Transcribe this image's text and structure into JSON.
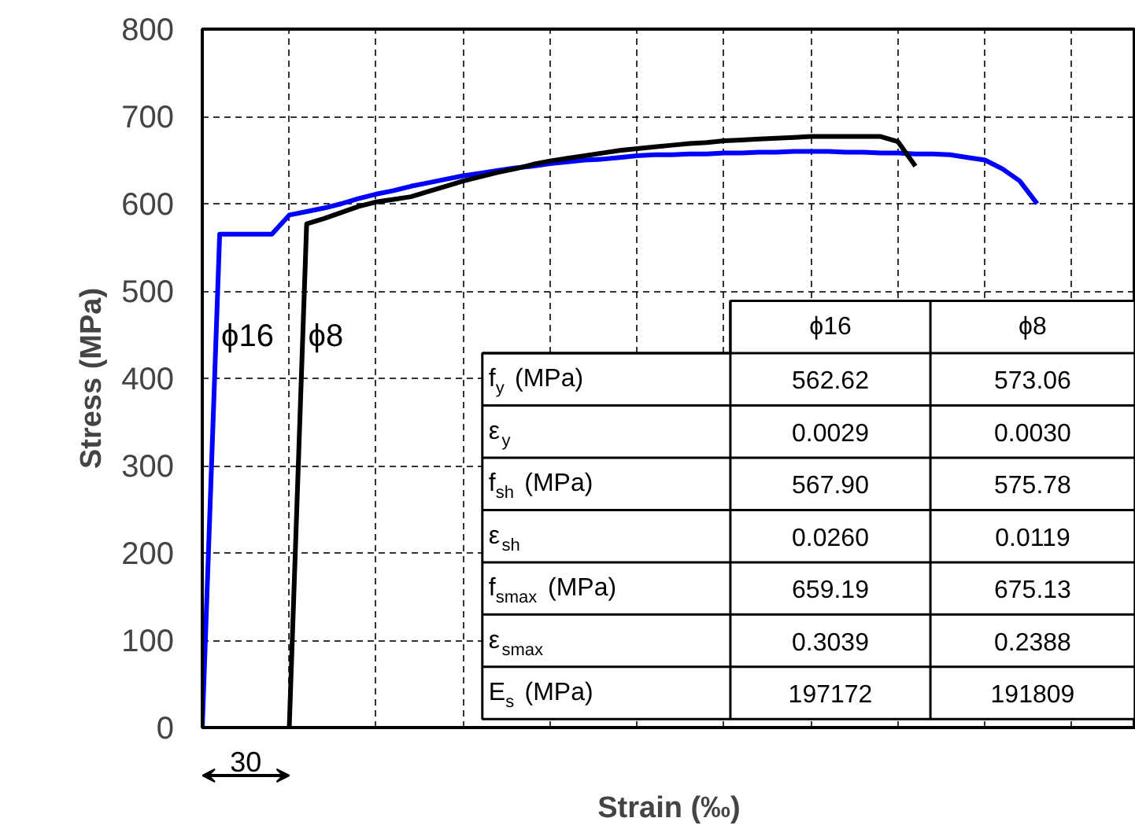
{
  "chart_data": {
    "type": "line",
    "xlabel": "Strain (‰)",
    "ylabel": "Stress (MPa)",
    "categories": [
      null,
      null,
      null,
      null,
      null,
      null,
      null,
      null,
      null,
      null,
      null,
      null,
      null,
      null,
      null,
      null,
      null,
      null,
      null,
      null,
      null,
      null,
      null,
      null,
      null,
      null,
      null,
      null,
      null,
      null,
      null,
      null,
      null,
      null,
      null,
      null,
      null,
      null,
      null,
      null,
      null,
      null,
      null,
      null,
      null,
      null,
      null,
      null,
      null,
      null,
      null,
      null,
      null,
      null
    ],
    "ylim": [
      0,
      800
    ],
    "yticks": [
      0,
      100,
      200,
      300,
      400,
      500,
      600,
      700,
      800
    ],
    "grid": true,
    "tick_labels": "y",
    "line_style": "solid",
    "series": [
      {
        "name": "ϕ16",
        "color": "#0000ff",
        "values": [
          0,
          565,
          565,
          565,
          565,
          587,
          591,
          595,
          600,
          606,
          611,
          615,
          620,
          624,
          628,
          632,
          635,
          638,
          641,
          643,
          646,
          648,
          650,
          651,
          653,
          655,
          656,
          656,
          657,
          657,
          658,
          658,
          659,
          659,
          660,
          660,
          660,
          659,
          659,
          658,
          658,
          657,
          657,
          656,
          653,
          650,
          640,
          626,
          600,
          null,
          null,
          null,
          null,
          null
        ]
      },
      {
        "name": "ϕ8",
        "color": "#000000",
        "values": [
          null,
          null,
          null,
          null,
          null,
          0,
          577,
          583,
          590,
          597,
          602,
          605,
          608,
          614,
          620,
          626,
          631,
          636,
          640,
          645,
          649,
          652,
          655,
          658,
          661,
          663,
          665,
          667,
          669,
          670,
          672,
          673,
          674,
          675,
          676,
          677,
          677,
          677,
          677,
          677,
          671,
          643,
          null,
          null,
          null,
          null,
          null,
          null,
          null,
          null,
          null,
          null,
          null,
          null
        ]
      }
    ],
    "annotations": [
      "30",
      "ϕ16",
      "ϕ8",
      "f$_{y}$ (MPa)",
      "562.62",
      "573.06",
      "ε$_{y}$",
      "0.0029",
      "0.0030",
      "f$_{sh}$ (MPa)",
      "567.90",
      "575.78",
      "ε$_{sh}$",
      "0.0260",
      "0.0119",
      "f$_{smax}$ (MPa)",
      "659.19",
      "675.13",
      "ε$_{smax}$",
      "0.3039",
      "0.2388",
      "E$_{s}$ (MPa)",
      "197172",
      "191809"
    ]
  }
}
